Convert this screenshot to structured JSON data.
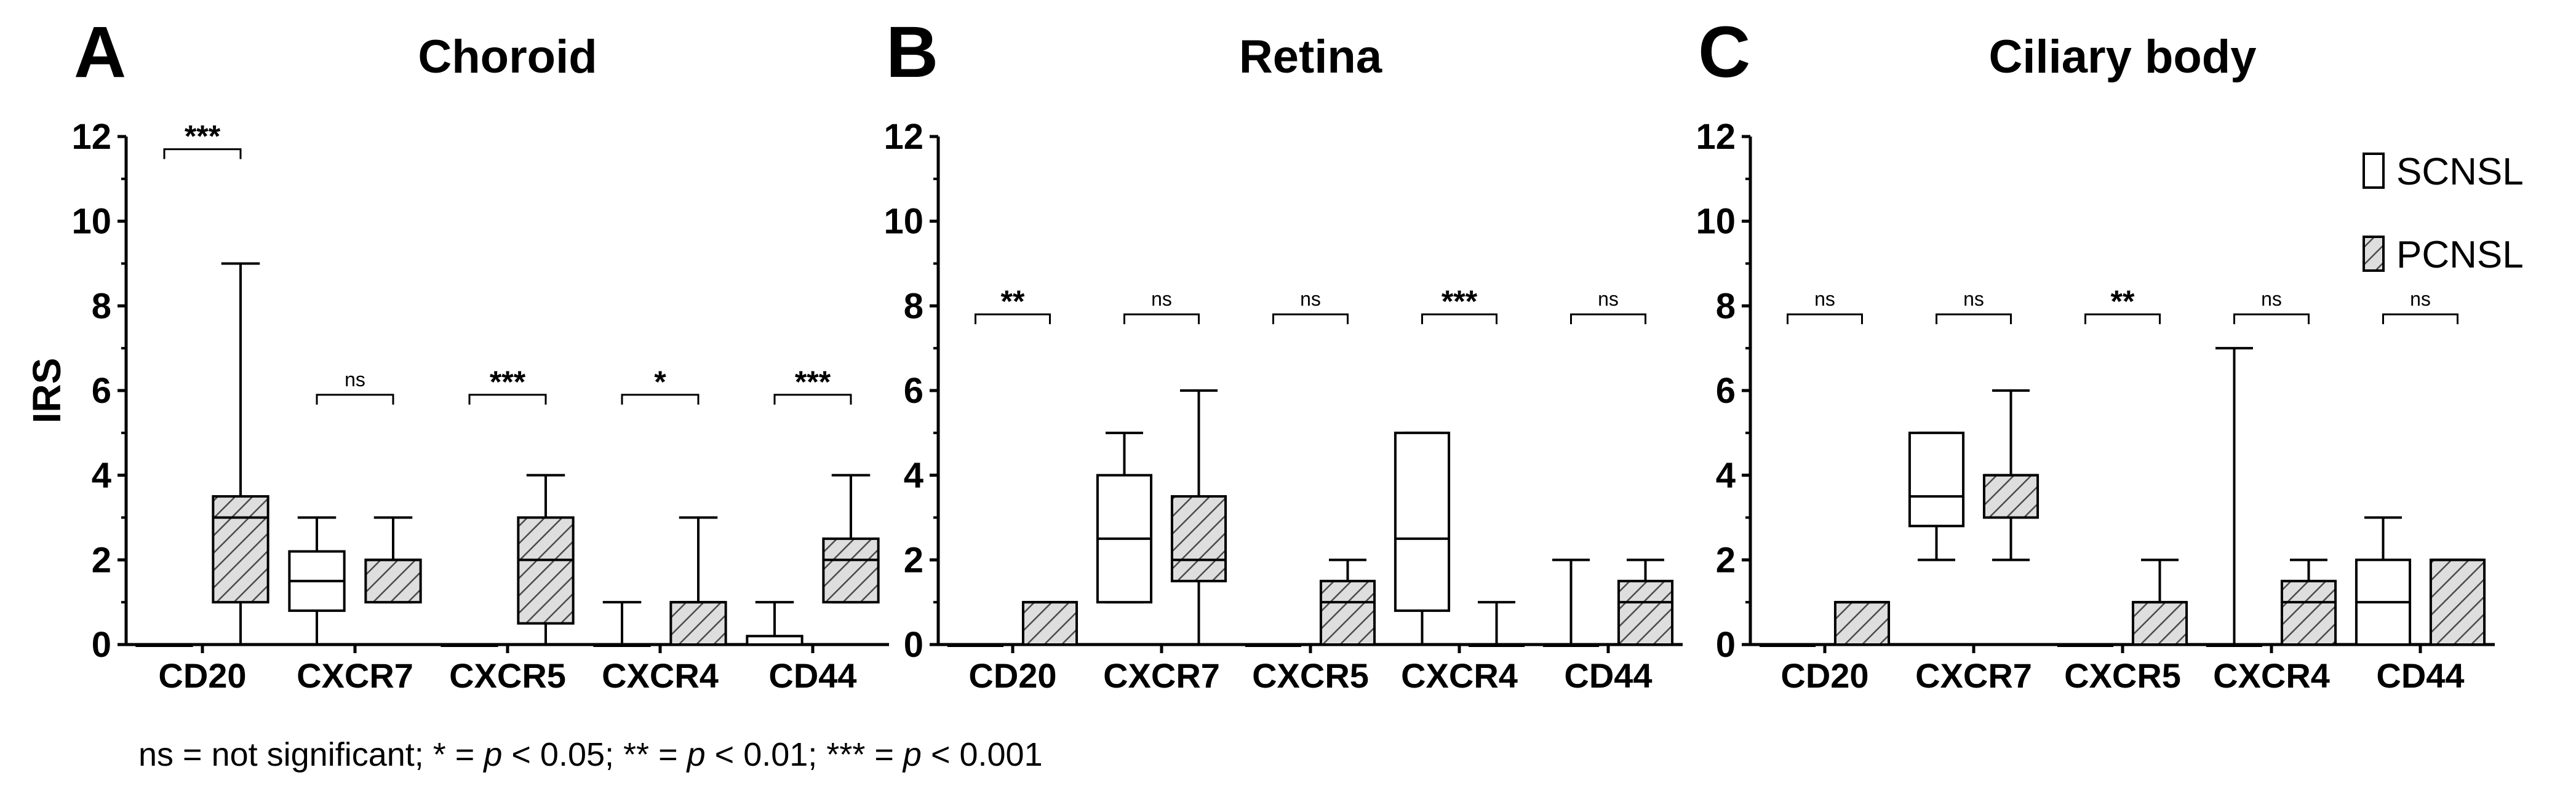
{
  "footnote": {
    "a": "ns = not significant; * = ",
    "p1": "p",
    "b": " < 0.05; ** = ",
    "p2": "p",
    "c": " < 0.01; *** = ",
    "p3": "p",
    "d": " < 0.001"
  },
  "colors": {
    "axis": "#000000",
    "box_fill_scnsl": "#ffffff",
    "hatch": "#555555",
    "hatch_bg": "#e0e0e0"
  },
  "chart_data": [
    {
      "type": "box",
      "panel_letter": "A",
      "title": "Choroid",
      "ylabel": "IRS",
      "ylim": [
        0,
        12
      ],
      "yticks": [
        "0",
        "2",
        "4",
        "6",
        "8",
        "10",
        "12"
      ],
      "categories": [
        "CD20",
        "CXCR7",
        "CXCR5",
        "CXCR4",
        "CD44"
      ],
      "legend": null,
      "series": [
        {
          "name": "SCNSL",
          "boxes": [
            {
              "min": 0,
              "q1": 0,
              "median": 0,
              "q3": 0,
              "max": 0
            },
            {
              "min": 0,
              "q1": 0.8,
              "median": 1.5,
              "q3": 2.2,
              "max": 3
            },
            {
              "min": 0,
              "q1": 0,
              "median": 0,
              "q3": 0,
              "max": 0
            },
            {
              "min": 0,
              "q1": 0,
              "median": 0,
              "q3": 0,
              "max": 1
            },
            {
              "min": 0,
              "q1": 0,
              "median": 0,
              "q3": 0.2,
              "max": 1
            }
          ]
        },
        {
          "name": "PCNSL",
          "boxes": [
            {
              "min": 0,
              "q1": 1,
              "median": 3,
              "q3": 3.5,
              "max": 9
            },
            {
              "min": 1,
              "q1": 1,
              "median": 2,
              "q3": 2,
              "max": 3
            },
            {
              "min": 0,
              "q1": 0.5,
              "median": 2,
              "q3": 3,
              "max": 4
            },
            {
              "min": 0,
              "q1": 0,
              "median": 1,
              "q3": 1,
              "max": 3
            },
            {
              "min": 1,
              "q1": 1,
              "median": 2,
              "q3": 2.5,
              "max": 4
            }
          ]
        }
      ],
      "significance": [
        {
          "label": "***",
          "y": 11.7
        },
        {
          "label": "ns",
          "y": 5.9
        },
        {
          "label": "***",
          "y": 5.9
        },
        {
          "label": "*",
          "y": 5.9
        },
        {
          "label": "***",
          "y": 5.9
        }
      ]
    },
    {
      "type": "box",
      "panel_letter": "B",
      "title": "Retina",
      "ylabel": "",
      "ylim": [
        0,
        12
      ],
      "yticks": [
        "0",
        "2",
        "4",
        "6",
        "8",
        "10",
        "12"
      ],
      "categories": [
        "CD20",
        "CXCR7",
        "CXCR5",
        "CXCR4",
        "CD44"
      ],
      "legend": null,
      "series": [
        {
          "name": "SCNSL",
          "boxes": [
            {
              "min": 0,
              "q1": 0,
              "median": 0,
              "q3": 0,
              "max": 0
            },
            {
              "min": 1,
              "q1": 1,
              "median": 2.5,
              "q3": 4,
              "max": 5
            },
            {
              "min": 0,
              "q1": 0,
              "median": 0,
              "q3": 0,
              "max": 0
            },
            {
              "min": 0,
              "q1": 0.8,
              "median": 2.5,
              "q3": 5,
              "max": 5
            },
            {
              "min": 0,
              "q1": 0,
              "median": 0,
              "q3": 0,
              "max": 2
            }
          ]
        },
        {
          "name": "PCNSL",
          "boxes": [
            {
              "min": 0,
              "q1": 0,
              "median": 1,
              "q3": 1,
              "max": 1
            },
            {
              "min": 0,
              "q1": 1.5,
              "median": 2,
              "q3": 3.5,
              "max": 6
            },
            {
              "min": 0,
              "q1": 0,
              "median": 1,
              "q3": 1.5,
              "max": 2
            },
            {
              "min": 0,
              "q1": 0,
              "median": 0,
              "q3": 0,
              "max": 1
            },
            {
              "min": 0,
              "q1": 0,
              "median": 1,
              "q3": 1.5,
              "max": 2
            }
          ]
        }
      ],
      "significance": [
        {
          "label": "**",
          "y": 7.8
        },
        {
          "label": "ns",
          "y": 7.8
        },
        {
          "label": "ns",
          "y": 7.8
        },
        {
          "label": "***",
          "y": 7.8
        },
        {
          "label": "ns",
          "y": 7.8
        }
      ]
    },
    {
      "type": "box",
      "panel_letter": "C",
      "title": "Ciliary body",
      "ylabel": "",
      "ylim": [
        0,
        12
      ],
      "yticks": [
        "0",
        "2",
        "4",
        "6",
        "8",
        "10",
        "12"
      ],
      "categories": [
        "CD20",
        "CXCR7",
        "CXCR5",
        "CXCR4",
        "CD44"
      ],
      "legend": [
        "SCNSL",
        "PCNSL"
      ],
      "series": [
        {
          "name": "SCNSL",
          "boxes": [
            {
              "min": 0,
              "q1": 0,
              "median": 0,
              "q3": 0,
              "max": 0
            },
            {
              "min": 2,
              "q1": 2.8,
              "median": 3.5,
              "q3": 5,
              "max": 5
            },
            {
              "min": 0,
              "q1": 0,
              "median": 0,
              "q3": 0,
              "max": 0
            },
            {
              "min": 0,
              "q1": 0,
              "median": 0,
              "q3": 0,
              "max": 7
            },
            {
              "min": 0,
              "q1": 0,
              "median": 1,
              "q3": 2,
              "max": 3
            }
          ]
        },
        {
          "name": "PCNSL",
          "boxes": [
            {
              "min": 0,
              "q1": 0,
              "median": 1,
              "q3": 1,
              "max": 1
            },
            {
              "min": 2,
              "q1": 3,
              "median": 4,
              "q3": 4,
              "max": 6
            },
            {
              "min": 0,
              "q1": 0,
              "median": 1,
              "q3": 1,
              "max": 2
            },
            {
              "min": 0,
              "q1": 0,
              "median": 1,
              "q3": 1.5,
              "max": 2
            },
            {
              "min": 0,
              "q1": 0,
              "median": 2,
              "q3": 2,
              "max": 2
            }
          ]
        }
      ],
      "significance": [
        {
          "label": "ns",
          "y": 7.8
        },
        {
          "label": "ns",
          "y": 7.8
        },
        {
          "label": "**",
          "y": 7.8
        },
        {
          "label": "ns",
          "y": 7.8
        },
        {
          "label": "ns",
          "y": 7.8
        }
      ]
    }
  ]
}
